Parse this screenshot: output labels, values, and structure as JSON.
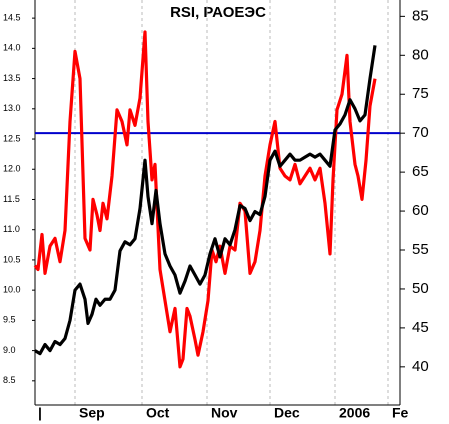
{
  "chart_data": {
    "type": "line",
    "title": "RSI, РАОЕЭС",
    "xlim": [
      0,
      365
    ],
    "xticks": [
      {
        "value": 3,
        "label": "|"
      },
      {
        "value": 40,
        "label": "Sep"
      },
      {
        "value": 107,
        "label": "Oct"
      },
      {
        "value": 172,
        "label": "Nov"
      },
      {
        "value": 235,
        "label": "Dec"
      },
      {
        "value": 300,
        "label": "2006"
      },
      {
        "value": 353,
        "label": "Fe"
      }
    ],
    "ylim": [
      8.1,
      14.8
    ],
    "yticks": [
      8.5,
      {
        "value": 9,
        "label": "9.0"
      },
      9.5,
      {
        "value": 10,
        "label": "10.0"
      },
      10.5,
      {
        "value": 11,
        "label": "11.0"
      },
      11.5,
      {
        "value": 12,
        "label": "12.0"
      },
      12.5,
      {
        "value": 13,
        "label": "13.0"
      },
      13.5,
      {
        "value": 14,
        "label": "14.0"
      },
      14.5
    ],
    "y2lim": [
      35.1,
      87.1
    ],
    "y2ticks": [
      40,
      45,
      50,
      55,
      60,
      65,
      70,
      75,
      80,
      85
    ],
    "grid": "x",
    "hlines": [
      {
        "value": 70,
        "axis": "y2",
        "color": "#0000cc"
      }
    ],
    "series": [
      {
        "color": "#ff0000",
        "axis": "y2",
        "x": [
          0,
          3,
          7,
          10,
          15,
          20,
          25,
          30,
          35,
          40,
          45,
          50,
          55,
          58,
          62,
          65,
          68,
          72,
          77,
          82,
          87,
          92,
          95,
          100,
          105,
          110,
          113,
          117,
          120,
          125,
          130,
          135,
          140,
          145,
          148,
          152,
          155,
          160,
          163,
          168,
          173,
          177,
          181,
          185,
          190,
          195,
          200,
          205,
          210,
          215,
          220,
          225,
          230,
          235,
          240,
          245,
          250,
          255,
          260,
          265,
          270,
          275,
          280,
          285,
          290,
          295,
          298,
          302,
          307,
          312,
          315,
          320,
          323,
          327,
          331,
          335,
          340
        ],
        "values": [
          53,
          52.5,
          57,
          52,
          55.5,
          56.5,
          53.5,
          57.5,
          71.5,
          80.5,
          77,
          56.5,
          55,
          61.5,
          59.5,
          57.5,
          61,
          59,
          64.5,
          73,
          71.5,
          68.5,
          73,
          71,
          74.5,
          83,
          71.5,
          64,
          66,
          52.5,
          48.5,
          44.5,
          47.5,
          40,
          41,
          47.5,
          46.5,
          43.5,
          41.5,
          44.5,
          48.5,
          55,
          53.5,
          55.5,
          52,
          55.5,
          55,
          61,
          60,
          52,
          53.5,
          57.5,
          64.5,
          68.5,
          71.5,
          65.5,
          64.5,
          64,
          66,
          63.5,
          64.5,
          65.5,
          64,
          65.5,
          61,
          54.5,
          64,
          73,
          75,
          80,
          71.5,
          66,
          64.5,
          61.5,
          66.5,
          73.5,
          77
        ]
      },
      {
        "color": "#000000",
        "axis": "y",
        "x": [
          0,
          5,
          10,
          15,
          20,
          25,
          30,
          35,
          40,
          45,
          50,
          53,
          57,
          61,
          65,
          70,
          75,
          80,
          85,
          90,
          95,
          100,
          105,
          110,
          113,
          117,
          121,
          125,
          130,
          135,
          140,
          145,
          150,
          155,
          160,
          165,
          170,
          175,
          180,
          185,
          190,
          195,
          200,
          205,
          210,
          215,
          220,
          225,
          230,
          235,
          240,
          245,
          250,
          255,
          260,
          265,
          270,
          275,
          280,
          285,
          290,
          295,
          300,
          305,
          310,
          315,
          320,
          325,
          330,
          335,
          340
        ],
        "values": [
          9.0,
          8.95,
          9.1,
          9.0,
          9.15,
          9.1,
          9.2,
          9.5,
          10.0,
          10.1,
          9.85,
          9.45,
          9.6,
          9.85,
          9.75,
          9.85,
          9.85,
          10.0,
          10.65,
          10.8,
          10.75,
          10.85,
          11.35,
          12.15,
          11.55,
          11.1,
          11.65,
          11.1,
          10.6,
          10.4,
          10.25,
          9.95,
          10.15,
          10.4,
          10.25,
          10.1,
          10.25,
          10.6,
          10.85,
          10.55,
          10.85,
          10.75,
          11.0,
          11.4,
          11.35,
          11.15,
          11.3,
          11.25,
          11.55,
          12.15,
          12.3,
          12.05,
          12.15,
          12.25,
          12.15,
          12.15,
          12.2,
          12.25,
          12.2,
          12.25,
          12.15,
          12.05,
          12.65,
          12.75,
          12.9,
          13.15,
          13.0,
          12.8,
          12.9,
          13.5,
          14.05
        ]
      }
    ]
  }
}
